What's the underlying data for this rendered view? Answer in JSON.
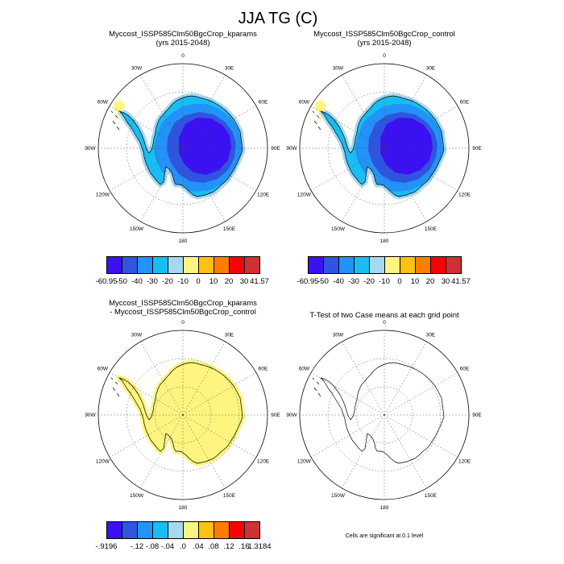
{
  "title": "JJA TG (C)",
  "palette": [
    "#3b10f2",
    "#2f55e0",
    "#2293f8",
    "#18bef2",
    "#a6d8f0",
    "#fdf57f",
    "#fdc113",
    "#fd7d00",
    "#f60207",
    "#d03134"
  ],
  "graticule": {
    "meridians": [
      {
        "label": "0",
        "angle": 0
      },
      {
        "label": "30E",
        "angle": 30
      },
      {
        "label": "60E",
        "angle": 60
      },
      {
        "label": "90E",
        "angle": 90
      },
      {
        "label": "120E",
        "angle": 120
      },
      {
        "label": "150E",
        "angle": 150
      },
      {
        "label": "180",
        "angle": 180
      },
      {
        "label": "150W",
        "angle": 210
      },
      {
        "label": "120W",
        "angle": 240
      },
      {
        "label": "90W",
        "angle": 270
      },
      {
        "label": "60W",
        "angle": 300
      },
      {
        "label": "30W",
        "angle": 330
      }
    ],
    "circle_radii": [
      35,
      70
    ]
  },
  "panels": [
    {
      "id": "kparams",
      "title_lines": [
        "Myccost_ISSP585Clm50BgcCrop_kparams",
        "(yrs 2015-2048)"
      ],
      "map_type": "filled"
    },
    {
      "id": "control",
      "title_lines": [
        "Myccost_ISSP585Clm50BgcCrop_control",
        "(yrs 2015-2048)"
      ],
      "map_type": "filled"
    },
    {
      "id": "difference",
      "title_lines": [
        "Myccost_ISSP585Clm50BgcCrop_kparams",
        "- Myccost_ISSP585Clm50BgcCrop_control"
      ],
      "map_type": "diff"
    },
    {
      "id": "ttest",
      "title_lines": [
        "T-Test of two Case means at each grid point"
      ],
      "map_type": "outline",
      "caption": "Cells are significant at 0.1 level"
    }
  ],
  "colorbars": {
    "temperature": {
      "labels": [
        "-60.95",
        "-50",
        "-40",
        "-30",
        "-20",
        "-10",
        "0",
        "10",
        "20",
        "30",
        "41.57"
      ]
    },
    "difference": {
      "labels": [
        "-.9196",
        "",
        "-.12",
        "-.08",
        "-.04",
        ".0",
        ".04",
        ".08",
        ".12",
        ".16",
        "1.3184"
      ]
    }
  },
  "chart_data": [
    {
      "type": "heatmap",
      "projection": "south polar stereographic",
      "region": "Antarctica",
      "title": "Myccost_ISSP585Clm50BgcCrop_kparams",
      "subtitle": "(yrs 2015-2048)",
      "variable": "JJA TG (C)",
      "level_edges": [
        -60.95,
        -50,
        -40,
        -30,
        -20,
        -10,
        0,
        10,
        20,
        30,
        41.57
      ],
      "legend_position": "bottom",
      "summary": "Winter surface temperature: interior plateau coldest (below -50 C, blue-violet core), warming outward in -50..-40, -40..-30, -30..-20 and -20..-10 bands toward the coast; small -10..0 C (yellow) patch at the Antarctic Peninsula tip near 60W."
    },
    {
      "type": "heatmap",
      "projection": "south polar stereographic",
      "region": "Antarctica",
      "title": "Myccost_ISSP585Clm50BgcCrop_control",
      "subtitle": "(yrs 2015-2048)",
      "variable": "JJA TG (C)",
      "level_edges": [
        -60.95,
        -50,
        -40,
        -30,
        -20,
        -10,
        0,
        10,
        20,
        30,
        41.57
      ],
      "legend_position": "bottom",
      "summary": "Nearly identical spatial pattern to the kparams case."
    },
    {
      "type": "heatmap",
      "projection": "south polar stereographic",
      "region": "Antarctica",
      "title": "Myccost_ISSP585Clm50BgcCrop_kparams - Myccost_ISSP585Clm50BgcCrop_control",
      "variable": "JJA TG difference (C)",
      "level_edges": [
        -0.9196,
        -0.16,
        -0.12,
        -0.08,
        -0.04,
        0,
        0.04,
        0.08,
        0.12,
        0.16,
        1.3184
      ],
      "legend_position": "bottom",
      "summary": "Difference field almost uniformly within the 0 to .04 C band (pale yellow) over the whole continent."
    },
    {
      "type": "map",
      "projection": "south polar stereographic",
      "region": "Antarctica",
      "title": "T-Test of two Case means at each grid point",
      "caption": "Cells are significant at 0.1 level",
      "summary": "Coastline outline only; no grid cells shaded as significant."
    }
  ]
}
